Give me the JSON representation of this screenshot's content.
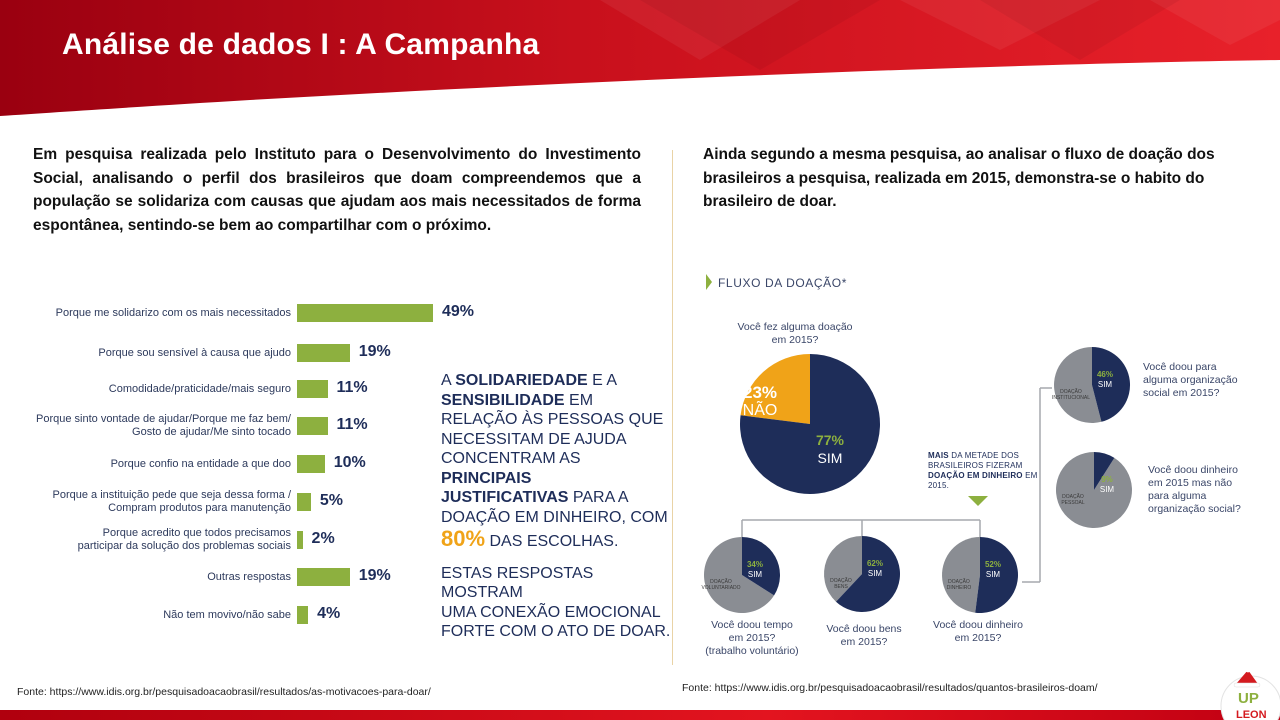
{
  "slide": {
    "title": "Análise de dados I : A Campanha"
  },
  "left": {
    "paragraph": "Em pesquisa realizada pelo Instituto para o Desenvolvimento do Investimento Social, analisando o perfil dos brasileiros que doam compreendemos que a população se solidariza com causas que ajudam aos mais necessitados de forma espontânea, sentindo-se bem ao compartilhar com o próximo.",
    "source": "Fonte: https://www.idis.org.br/pesquisadoacaobrasil/resultados/as-motivacoes-para-doar/"
  },
  "right": {
    "paragraph": "Ainda segundo a mesma pesquisa, ao analisar o fluxo de doação dos brasileiros a pesquisa, realizada em 2015, demonstra-se o habito do brasileiro de doar.",
    "source": "Fonte: https://www.idis.org.br/pesquisadoacaobrasil/resultados/quantos-brasileiros-doam/"
  },
  "callout": {
    "l1a": "A ",
    "l1b": "Solidariedade",
    "l1c": " e a",
    "l2a": "Sensibilidade",
    "l2b": " em",
    "l3": "relação às pessoas que",
    "l4": "necessitam de ajuda",
    "l5": "concentram as",
    "l6": "principais",
    "l7a": "justificativas",
    "l7b": " para a",
    "l8": "doação em dinheiro, com",
    "l9a": "80%",
    "l9b": " das escolhas.",
    "l10": "Estas respostas mostram",
    "l11": "uma conexão emocional",
    "l12": "forte com o ato de doar."
  },
  "flow": {
    "title": "FLUXO DA DOAÇÃO*",
    "q_main": [
      "Você fez alguma doação",
      "em 2015?"
    ],
    "q_org": [
      "Você doou para",
      "alguma organização",
      "social em 2015?"
    ],
    "q_money_no_org": [
      "Você doou dinheiro",
      "em 2015 mas não",
      "para alguma",
      "organização social?"
    ],
    "q_time": [
      "Você doou tempo",
      "em 2015?",
      "(trabalho voluntário)"
    ],
    "q_goods": [
      "Você doou bens",
      "em 2015?"
    ],
    "q_money": [
      "Você doou dinheiro",
      "em 2015?"
    ],
    "note": {
      "a": "MAIS",
      "b": " DA METADE DOS BRASILEIROS FIZERAM ",
      "c": "DOAÇÃO EM DINHEIRO",
      "d": " EM 2015."
    },
    "pie_labels": {
      "main_no_pct": "23%",
      "main_no": "NÃO",
      "main_yes_pct": "77%",
      "main_yes": "SIM",
      "org_pct": "46%",
      "org_sim": "SIM",
      "org_tag": "DOAÇÃO INSTITUCIONAL",
      "nonorg_pct": "9%",
      "nonorg_sim": "SIM",
      "nonorg_tag": "DOAÇÃO PESSOAL",
      "time_pct": "34%",
      "time_sim": "SIM",
      "time_tag": "DOAÇÃO VOLUNTARIADO",
      "goods_pct": "62%",
      "goods_sim": "SIM",
      "goods_tag": "DOAÇÃO BENS",
      "money_pct": "52%",
      "money_sim": "SIM",
      "money_tag": "DOAÇÃO DINHEIRO"
    }
  },
  "colors": {
    "header_red": "#c8101c",
    "bar_green": "#8db03f",
    "navy": "#1e2d59",
    "orange": "#f0a318",
    "gray": "#8a8d93"
  },
  "logo": {
    "text_top": "UP",
    "text_bottom": "LEON"
  },
  "chart_data": [
    {
      "type": "bar",
      "orientation": "horizontal",
      "categories": [
        "Porque me solidarizo com os mais necessitados",
        "Porque sou sensível à causa que ajudo",
        "Comodidade/praticidade/mais seguro",
        "Porque sinto vontade de ajudar/Porque me faz bem/ Gosto de ajudar/Me sinto tocado",
        "Porque confio na entidade a que doo",
        "Porque a instituição pede que seja dessa forma / Compram produtos para manutenção",
        "Porque acredito que todos precisamos participar da solução dos problemas sociais",
        "Outras respostas",
        "Não tem movivo/não sabe"
      ],
      "category_lines": [
        [
          "Porque me solidarizo com os mais necessitados"
        ],
        [
          "Porque sou sensível à causa que ajudo"
        ],
        [
          "Comodidade/praticidade/mais seguro"
        ],
        [
          "Porque sinto vontade de ajudar/Porque me faz bem/",
          "Gosto de ajudar/Me sinto tocado"
        ],
        [
          "Porque confio na entidade a que doo"
        ],
        [
          "Porque a instituição pede que seja dessa forma /",
          "Compram produtos para manutenção"
        ],
        [
          "Porque acredito que todos precisamos",
          "participar da solução dos problemas sociais"
        ],
        [
          "Outras respostas"
        ],
        [
          "Não tem movivo/não sabe"
        ]
      ],
      "values": [
        49,
        19,
        11,
        11,
        10,
        5,
        2,
        19,
        4
      ],
      "value_labels": [
        "49%",
        "19%",
        "11%",
        "11%",
        "10%",
        "5%",
        "2%",
        "19%",
        "4%"
      ],
      "unit": "%"
    },
    {
      "type": "pie",
      "categories": [
        "NÃO",
        "SIM"
      ],
      "values": [
        23,
        77
      ],
      "question": "Você fez alguma doação em 2015?"
    },
    {
      "type": "pie",
      "categories": [
        "SIM",
        "Não"
      ],
      "values": [
        46,
        54
      ],
      "question": "Você doou para alguma organização social em 2015?"
    },
    {
      "type": "pie",
      "categories": [
        "SIM",
        "Não"
      ],
      "values": [
        9,
        91
      ],
      "question": "Você doou dinheiro em 2015 mas não para alguma organização social?"
    },
    {
      "type": "pie",
      "categories": [
        "SIM",
        "Não"
      ],
      "values": [
        34,
        66
      ],
      "question": "Você doou tempo em 2015? (trabalho voluntário)"
    },
    {
      "type": "pie",
      "categories": [
        "SIM",
        "Não"
      ],
      "values": [
        62,
        38
      ],
      "question": "Você doou bens em 2015?"
    },
    {
      "type": "pie",
      "categories": [
        "SIM",
        "Não"
      ],
      "values": [
        52,
        48
      ],
      "question": "Você doou dinheiro em 2015?"
    }
  ]
}
